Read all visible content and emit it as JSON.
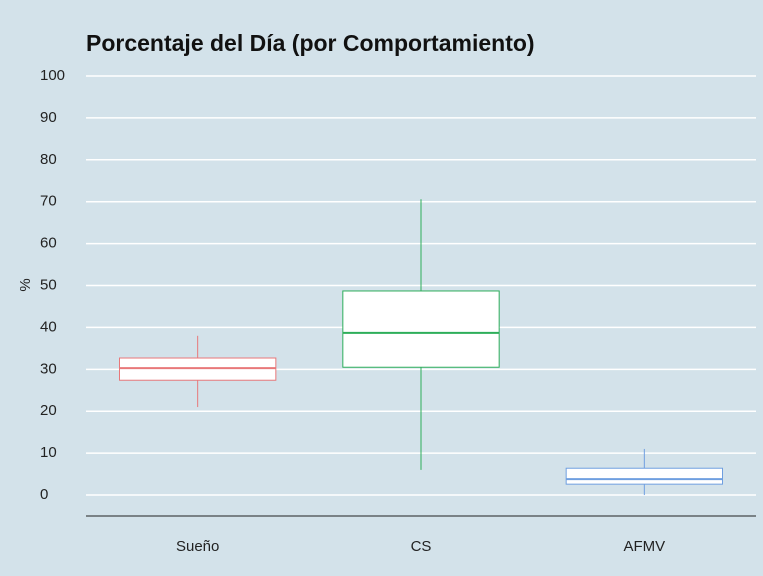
{
  "chart_data": {
    "type": "box",
    "title": "Porcentaje del Día (por Comportamiento)",
    "y_label": "%",
    "categories": [
      "Sueño",
      "CS",
      "AFMV"
    ],
    "colors": [
      "#e8787a",
      "#2eae5a",
      "#6f9fe0"
    ],
    "boxes": [
      {
        "min": 21,
        "q1": 27.4,
        "median": 30.3,
        "q3": 32.7,
        "max": 38
      },
      {
        "min": 6,
        "q1": 30.5,
        "median": 38.7,
        "q3": 48.7,
        "max": 70.6
      },
      {
        "min": 0,
        "q1": 2.6,
        "median": 3.8,
        "q3": 6.4,
        "max": 11
      }
    ],
    "ylim": [
      -5,
      100
    ],
    "yticks": [
      0,
      10,
      20,
      30,
      40,
      50,
      60,
      70,
      80,
      90,
      100
    ],
    "grid": true
  }
}
